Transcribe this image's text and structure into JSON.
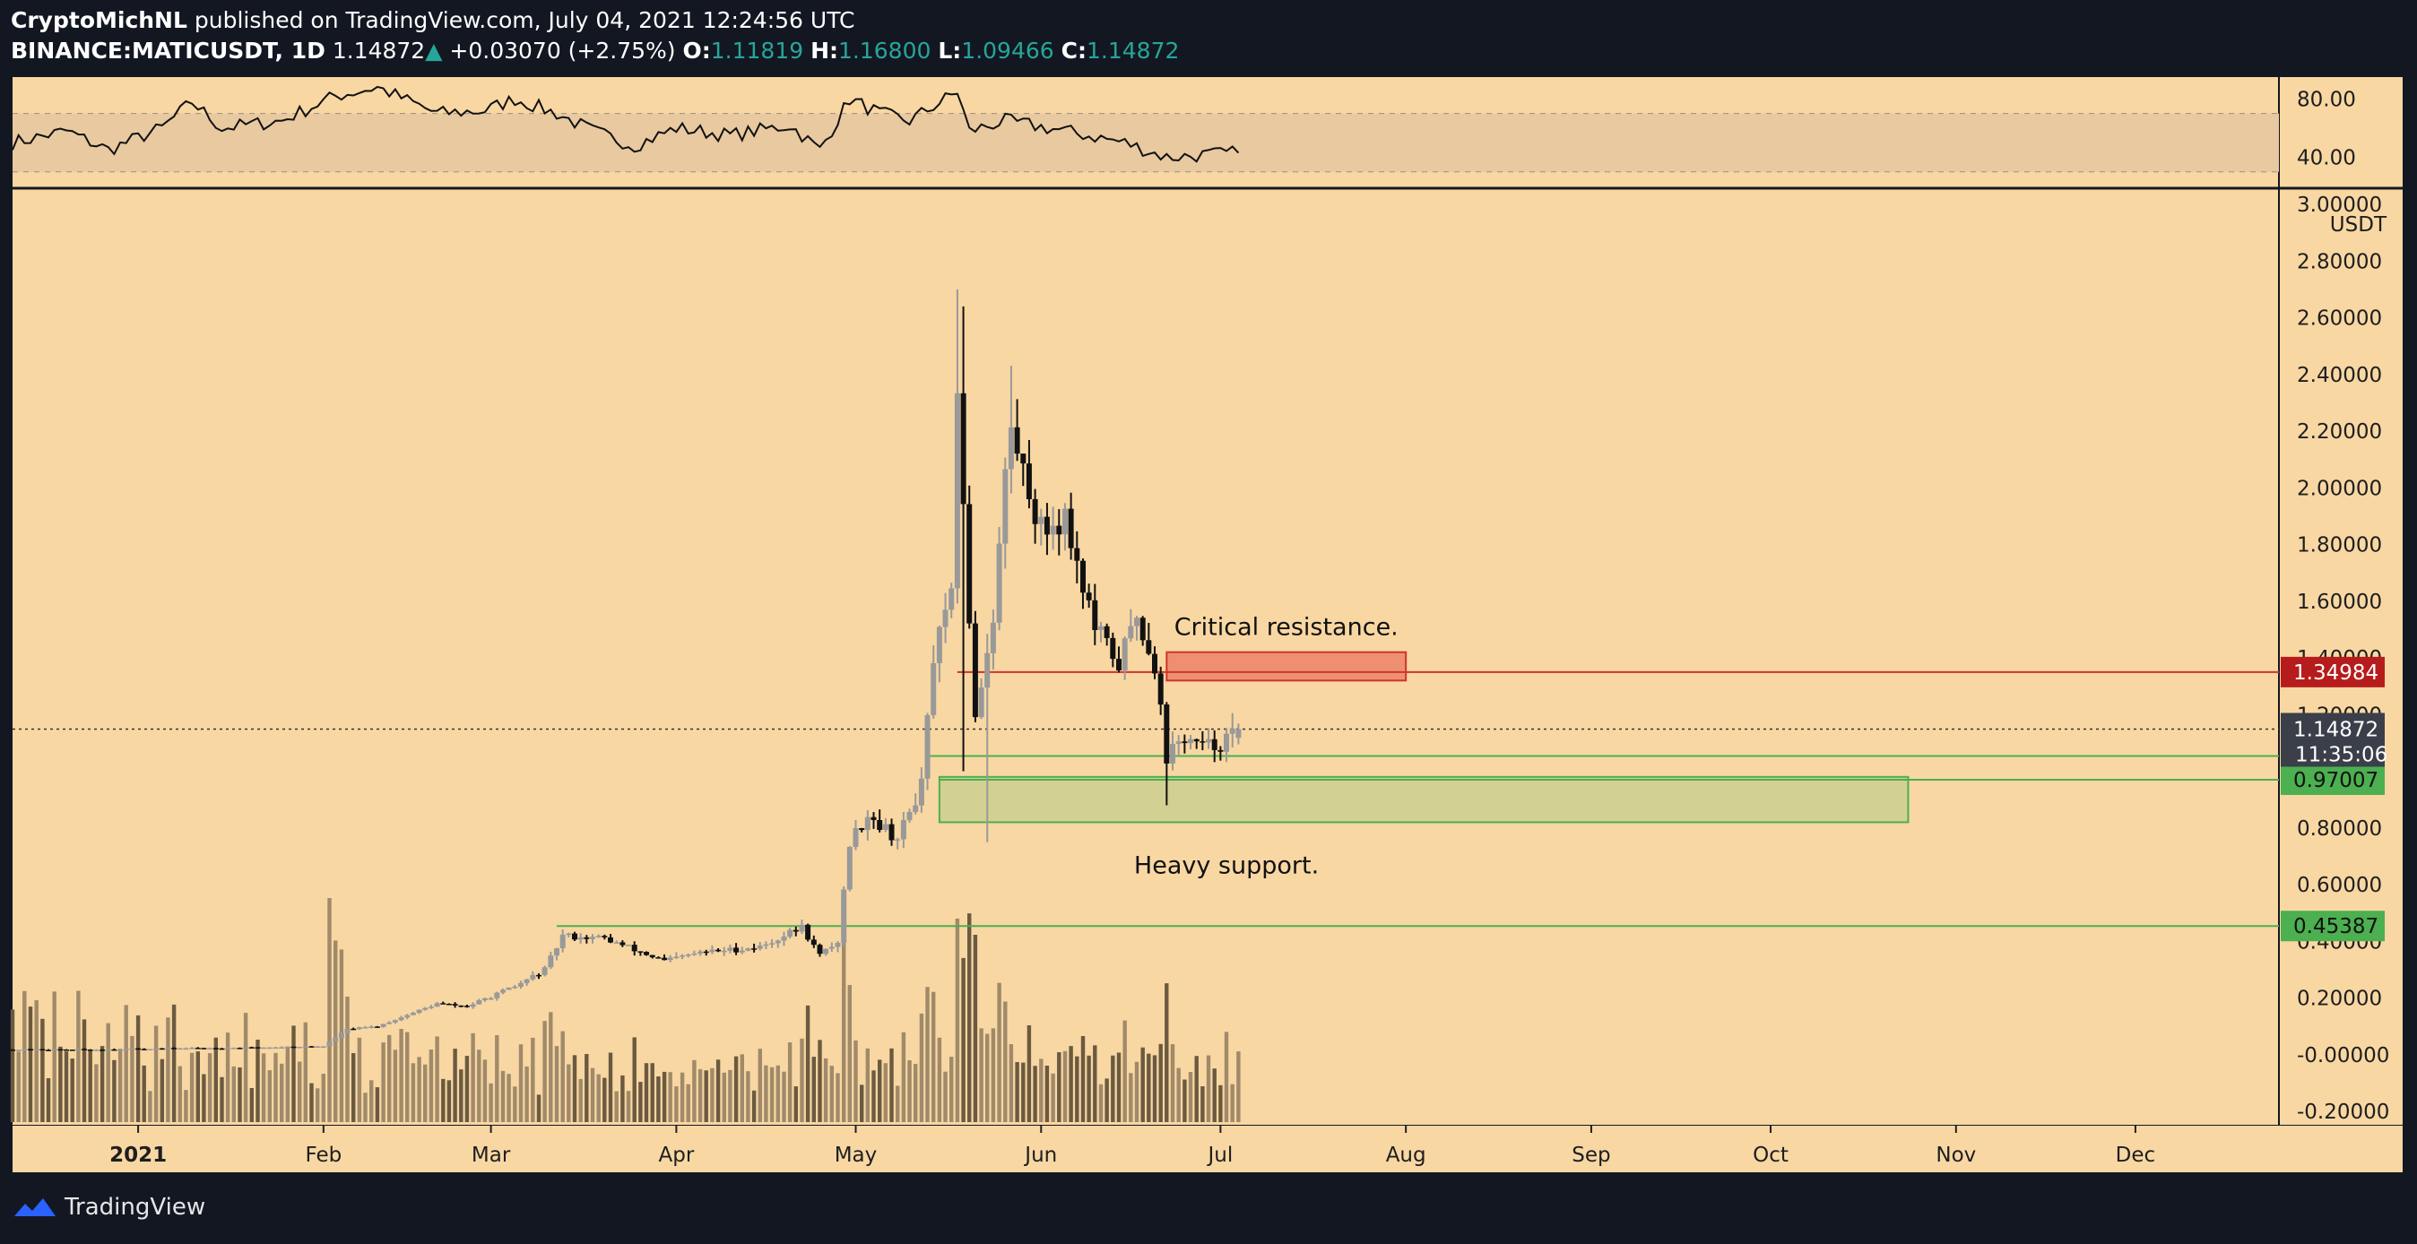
{
  "header": {
    "author": "CryptoMichNL",
    "published_text": "published on TradingView.com, July 04, 2021 12:24:56 UTC",
    "symbol": "BINANCE:MATICUSDT, 1D",
    "last": "1.14872",
    "change": "+0.03070 (+2.75%)",
    "o_label": "O:",
    "o": "1.11819",
    "h_label": "H:",
    "h": "1.16800",
    "l_label": "L:",
    "l": "1.09466",
    "c_label": "C:",
    "c": "1.14872"
  },
  "footer": {
    "brand": "TradingView"
  },
  "colors": {
    "bg": "#f8d7a3",
    "frame": "#131722",
    "up_candle": "#999999",
    "down_candle": "#111111",
    "resistance": "#d0342c",
    "support": "#4caf50"
  },
  "chart_data": {
    "type": "candlestick",
    "symbol": "BINANCE:MATICUSDT",
    "interval": "1D",
    "currency_label": "USDT",
    "y_ticks": [
      "3.00000",
      "2.80000",
      "2.60000",
      "2.40000",
      "2.20000",
      "2.00000",
      "1.80000",
      "1.60000",
      "1.40000",
      "1.20000",
      "0.80000",
      "0.60000",
      "0.40000",
      "0.20000",
      "-0.00000",
      "-0.20000"
    ],
    "y_range": [
      -0.2,
      3.0
    ],
    "x_ticks": [
      "2021",
      "Feb",
      "Mar",
      "Apr",
      "May",
      "Jun",
      "Jul",
      "Aug",
      "Sep",
      "Oct",
      "Nov",
      "Dec"
    ],
    "x_range": [
      "2020-12-11",
      "2021-12-25"
    ],
    "current_price": {
      "value": 1.14872,
      "label": "1.14872",
      "countdown": "11:35:06"
    },
    "levels": [
      {
        "name": "resistance",
        "value": 1.34984,
        "label": "1.34984",
        "color": "#d0342c"
      },
      {
        "name": "support-upper",
        "value": 1.05357,
        "label": "1.05357",
        "color": "#4caf50"
      },
      {
        "name": "support-lower",
        "value": 0.97007,
        "label": "0.97007",
        "color": "#4caf50"
      },
      {
        "name": "support-deep",
        "value": 0.45387,
        "label": "0.45387",
        "color": "#4caf50"
      }
    ],
    "zones": [
      {
        "name": "resistance-zone",
        "from_date": "2021-06-22",
        "to_date": "2021-08-01",
        "low": 1.32,
        "high": 1.42
      },
      {
        "name": "support-zone",
        "from_date": "2021-05-15",
        "to_date": "2021-10-24",
        "low": 0.82,
        "high": 0.98
      }
    ],
    "annotations": [
      {
        "text": "Critical resistance.",
        "date": "2021-07-12",
        "price": 1.48
      },
      {
        "text": "Heavy support.",
        "date": "2021-07-02",
        "price": 0.64
      }
    ],
    "ohlc_anchors": [
      {
        "date": "2020-12-11",
        "close": 0.018
      },
      {
        "date": "2020-12-25",
        "close": 0.018
      },
      {
        "date": "2021-01-05",
        "close": 0.022
      },
      {
        "date": "2021-01-20",
        "close": 0.025
      },
      {
        "date": "2021-02-01",
        "close": 0.03
      },
      {
        "date": "2021-02-05",
        "close": 0.09
      },
      {
        "date": "2021-02-10",
        "close": 0.1
      },
      {
        "date": "2021-02-20",
        "close": 0.18
      },
      {
        "date": "2021-02-25",
        "close": 0.17
      },
      {
        "date": "2021-03-05",
        "close": 0.24
      },
      {
        "date": "2021-03-10",
        "close": 0.3
      },
      {
        "date": "2021-03-13",
        "close": 0.42
      },
      {
        "date": "2021-03-20",
        "close": 0.41
      },
      {
        "date": "2021-03-30",
        "close": 0.33
      },
      {
        "date": "2021-04-05",
        "close": 0.36
      },
      {
        "date": "2021-04-15",
        "close": 0.38
      },
      {
        "date": "2021-04-22",
        "close": 0.45
      },
      {
        "date": "2021-04-25",
        "close": 0.35
      },
      {
        "date": "2021-04-28",
        "close": 0.4
      },
      {
        "date": "2021-04-30",
        "close": 0.75
      },
      {
        "date": "2021-05-03",
        "close": 0.85
      },
      {
        "date": "2021-05-08",
        "close": 0.76
      },
      {
        "date": "2021-05-12",
        "close": 0.95
      },
      {
        "date": "2021-05-14",
        "close": 1.4
      },
      {
        "date": "2021-05-17",
        "close": 1.6
      },
      {
        "date": "2021-05-18",
        "close": 2.38
      },
      {
        "date": "2021-05-19",
        "close": 1.9
      },
      {
        "date": "2021-05-21",
        "close": 1.2
      },
      {
        "date": "2021-05-24",
        "close": 1.55
      },
      {
        "date": "2021-05-26",
        "close": 2.05
      },
      {
        "date": "2021-05-27",
        "close": 2.2
      },
      {
        "date": "2021-06-01",
        "close": 1.85
      },
      {
        "date": "2021-06-05",
        "close": 1.9
      },
      {
        "date": "2021-06-10",
        "close": 1.5
      },
      {
        "date": "2021-06-14",
        "close": 1.38
      },
      {
        "date": "2021-06-17",
        "close": 1.55
      },
      {
        "date": "2021-06-20",
        "close": 1.38
      },
      {
        "date": "2021-06-22",
        "close": 1.05
      },
      {
        "date": "2021-06-25",
        "close": 1.12
      },
      {
        "date": "2021-06-28",
        "close": 1.08
      },
      {
        "date": "2021-07-01",
        "close": 1.1
      },
      {
        "date": "2021-07-04",
        "close": 1.14872
      }
    ],
    "volume_panel": {
      "visible": true
    },
    "rsi": {
      "y_ticks": [
        "80.00",
        "40.00"
      ],
      "range": [
        20,
        95
      ],
      "band": [
        30,
        70
      ],
      "anchors": [
        {
          "date": "2020-12-11",
          "value": 50
        },
        {
          "date": "2020-12-20",
          "value": 58
        },
        {
          "date": "2020-12-27",
          "value": 45
        },
        {
          "date": "2021-01-05",
          "value": 60
        },
        {
          "date": "2021-01-10",
          "value": 78
        },
        {
          "date": "2021-01-15",
          "value": 60
        },
        {
          "date": "2021-01-25",
          "value": 65
        },
        {
          "date": "2021-02-03",
          "value": 82
        },
        {
          "date": "2021-02-10",
          "value": 88
        },
        {
          "date": "2021-02-20",
          "value": 70
        },
        {
          "date": "2021-02-28",
          "value": 72
        },
        {
          "date": "2021-03-05",
          "value": 80
        },
        {
          "date": "2021-03-12",
          "value": 70
        },
        {
          "date": "2021-03-18",
          "value": 58
        },
        {
          "date": "2021-03-25",
          "value": 48
        },
        {
          "date": "2021-04-01",
          "value": 60
        },
        {
          "date": "2021-04-10",
          "value": 55
        },
        {
          "date": "2021-04-20",
          "value": 62
        },
        {
          "date": "2021-04-25",
          "value": 45
        },
        {
          "date": "2021-04-30",
          "value": 80
        },
        {
          "date": "2021-05-05",
          "value": 70
        },
        {
          "date": "2021-05-10",
          "value": 65
        },
        {
          "date": "2021-05-18",
          "value": 85
        },
        {
          "date": "2021-05-20",
          "value": 58
        },
        {
          "date": "2021-05-26",
          "value": 65
        },
        {
          "date": "2021-06-05",
          "value": 58
        },
        {
          "date": "2021-06-15",
          "value": 50
        },
        {
          "date": "2021-06-22",
          "value": 40
        },
        {
          "date": "2021-07-04",
          "value": 43
        }
      ]
    }
  }
}
